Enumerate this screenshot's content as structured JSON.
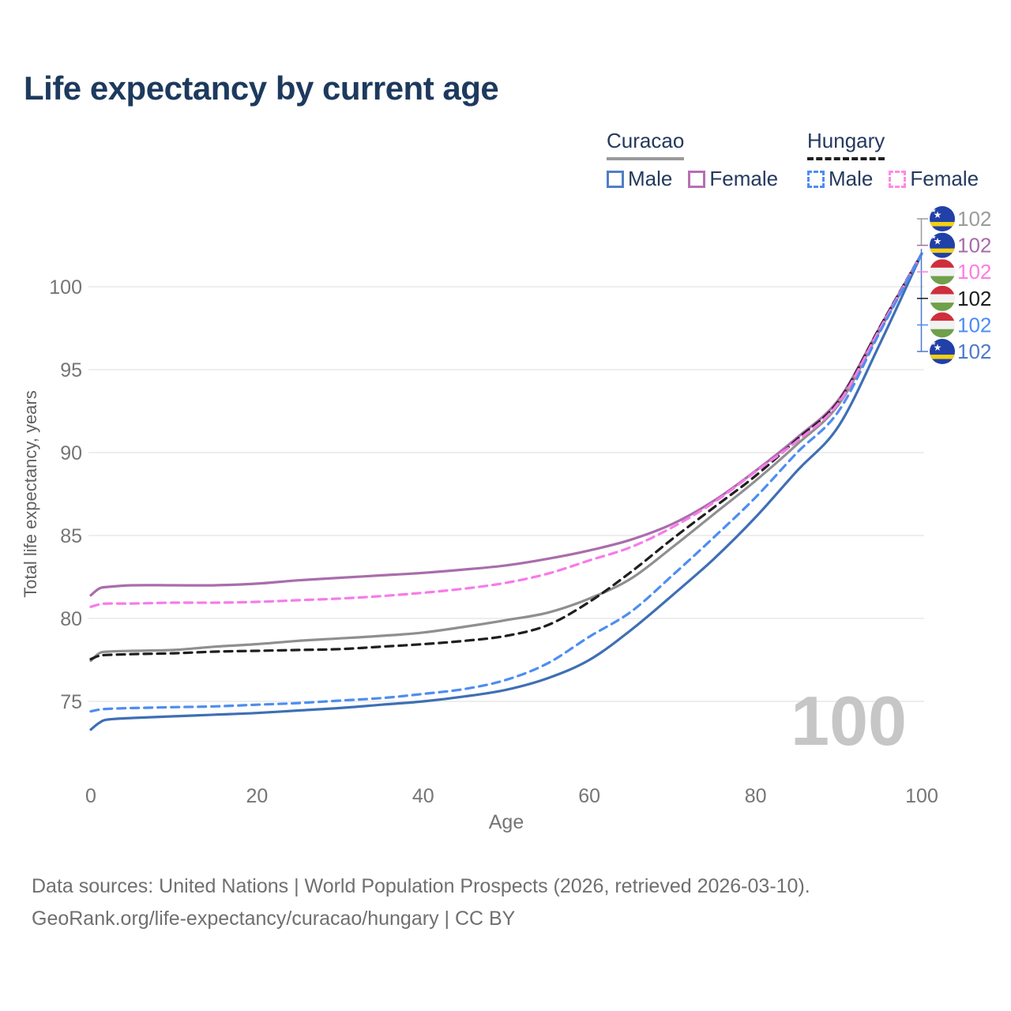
{
  "title": "Life expectancy by current age",
  "watermark": "100",
  "legend": {
    "groups": [
      {
        "label": "Curacao",
        "line_style": "solid",
        "underline_color": "#9a9a9a",
        "items": [
          {
            "label": "Male",
            "color": "#527ec4",
            "dashed": false
          },
          {
            "label": "Female",
            "color": "#b570b2",
            "dashed": false
          }
        ]
      },
      {
        "label": "Hungary",
        "line_style": "dashed",
        "underline_color": "#1f1f1f",
        "items": [
          {
            "label": "Male",
            "color": "#4e8df2",
            "dashed": true
          },
          {
            "label": "Female",
            "color": "#ff8ae4",
            "dashed": true
          }
        ]
      }
    ]
  },
  "chart_data": {
    "type": "line",
    "title": "Life expectancy by current age",
    "xlabel": "Age",
    "ylabel": "Total life expectancy, years",
    "xlim": [
      0,
      100
    ],
    "ylim": [
      73,
      103
    ],
    "x_ticks": [
      0,
      20,
      40,
      60,
      80,
      100
    ],
    "y_ticks": [
      75,
      80,
      85,
      90,
      95,
      100
    ],
    "grid": "horizontal",
    "legend_position": "top-right",
    "x": [
      0,
      1,
      2,
      5,
      10,
      15,
      20,
      25,
      30,
      35,
      40,
      45,
      50,
      55,
      60,
      65,
      70,
      75,
      80,
      85,
      90,
      95,
      100
    ],
    "series": [
      {
        "name": "Curacao",
        "country": "Curacao",
        "sex": "total",
        "color": "#8f8f8f",
        "dash": false,
        "values": [
          77.45,
          77.9,
          78.0,
          78.05,
          78.1,
          78.3,
          78.45,
          78.65,
          78.8,
          78.95,
          79.15,
          79.5,
          79.9,
          80.35,
          81.2,
          82.4,
          84.3,
          86.3,
          88.3,
          90.5,
          92.9,
          97.4,
          102
        ]
      },
      {
        "name": "Curacao Female",
        "country": "Curacao",
        "sex": "female",
        "color": "#a96dab",
        "dash": false,
        "values": [
          81.4,
          81.8,
          81.9,
          82.0,
          82.0,
          82.0,
          82.1,
          82.3,
          82.45,
          82.6,
          82.75,
          82.95,
          83.2,
          83.6,
          84.1,
          84.75,
          85.7,
          87.1,
          88.9,
          90.9,
          93.2,
          97.6,
          102
        ]
      },
      {
        "name": "Curacao Male",
        "country": "Curacao",
        "sex": "male",
        "color": "#3f6fb5",
        "dash": false,
        "values": [
          73.3,
          73.7,
          73.9,
          74.0,
          74.1,
          74.2,
          74.3,
          74.45,
          74.6,
          74.8,
          75.0,
          75.3,
          75.7,
          76.4,
          77.5,
          79.3,
          81.4,
          83.6,
          86.1,
          88.9,
          91.6,
          96.6,
          102
        ]
      },
      {
        "name": "Hungary",
        "country": "Hungary",
        "sex": "total",
        "color": "#1f1f1f",
        "dash": true,
        "values": [
          77.55,
          77.75,
          77.8,
          77.85,
          77.9,
          78.0,
          78.05,
          78.1,
          78.15,
          78.3,
          78.45,
          78.65,
          78.95,
          79.6,
          81.0,
          82.8,
          84.8,
          86.7,
          88.6,
          90.8,
          93.1,
          97.6,
          102
        ]
      },
      {
        "name": "Hungary Female",
        "country": "Hungary",
        "sex": "female",
        "color": "#f87ae8",
        "dash": true,
        "values": [
          80.7,
          80.85,
          80.9,
          80.9,
          80.95,
          80.95,
          81.0,
          81.1,
          81.2,
          81.35,
          81.55,
          81.8,
          82.15,
          82.7,
          83.5,
          84.3,
          85.5,
          87.0,
          88.85,
          90.7,
          93.0,
          97.5,
          102
        ]
      },
      {
        "name": "Hungary Male",
        "country": "Hungary",
        "sex": "male",
        "color": "#4e8df2",
        "dash": true,
        "values": [
          74.4,
          74.5,
          74.55,
          74.6,
          74.65,
          74.7,
          74.8,
          74.9,
          75.05,
          75.2,
          75.45,
          75.75,
          76.3,
          77.3,
          78.9,
          80.4,
          82.6,
          84.9,
          87.3,
          90.0,
          92.5,
          97.3,
          102
        ]
      }
    ],
    "end_labels": [
      {
        "flag": "curacao",
        "series": "Curacao",
        "value": "102",
        "color": "#9b9b9b"
      },
      {
        "flag": "curacao",
        "series": "Curacao Female",
        "value": "102",
        "color": "#a76ba7"
      },
      {
        "flag": "hungary",
        "series": "Hungary Female",
        "value": "102",
        "color": "#fd7ce1"
      },
      {
        "flag": "hungary",
        "series": "Hungary",
        "value": "102",
        "color": "#1c1c1c"
      },
      {
        "flag": "hungary",
        "series": "Hungary Male",
        "value": "102",
        "color": "#4b8cf5"
      },
      {
        "flag": "curacao",
        "series": "Curacao Male",
        "value": "102",
        "color": "#4d79c9"
      }
    ],
    "flag_colors": {
      "curacao_blue": "#2140a8",
      "curacao_yellow": "#f5d010",
      "hungary_red": "#cf2e3c",
      "hungary_white": "#f2f2f2",
      "hungary_green": "#6fa04a"
    }
  },
  "footer": {
    "line1": "Data sources: United Nations | World Population Prospects (2026, retrieved 2026-03-10).",
    "line2": "GeoRank.org/life-expectancy/curacao/hungary | CC BY"
  }
}
